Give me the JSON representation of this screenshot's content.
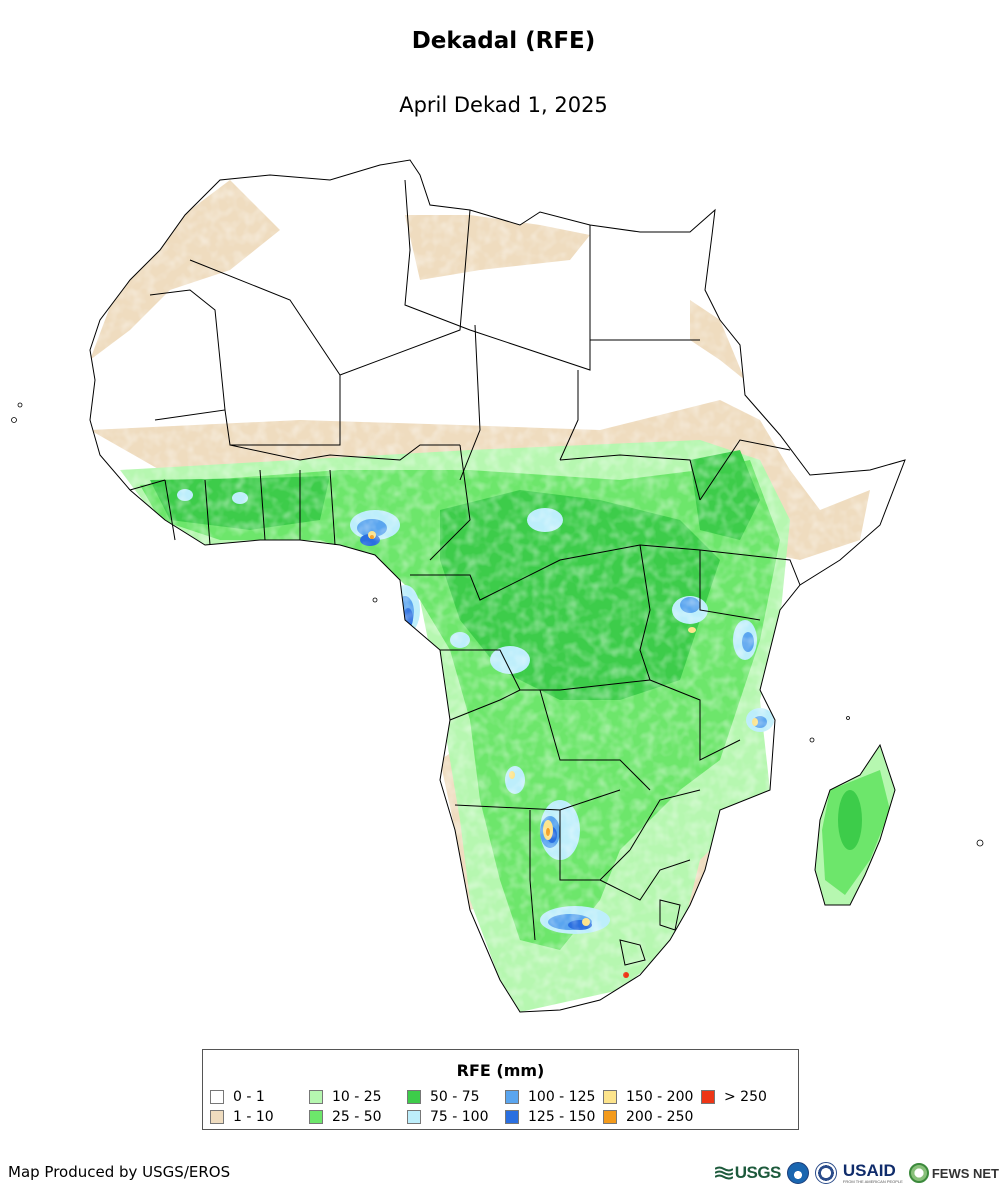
{
  "header": {
    "title": "Dekadal (RFE)",
    "subtitle": "April Dekad 1, 2025"
  },
  "map": {
    "region": "Africa",
    "basemap": "country boundaries",
    "background_color": "#ffffff",
    "border_color": "#000000"
  },
  "legend": {
    "title": "RFE (mm)",
    "classes": [
      {
        "label": "0 - 1",
        "color": "#ffffff"
      },
      {
        "label": "1 - 10",
        "color": "#efdcbf"
      },
      {
        "label": "10 - 25",
        "color": "#b6f7b0"
      },
      {
        "label": "25 - 50",
        "color": "#6de66b"
      },
      {
        "label": "50 - 75",
        "color": "#3dcc4a"
      },
      {
        "label": "75 - 100",
        "color": "#bdeefb"
      },
      {
        "label": "100 - 125",
        "color": "#5aa5ef"
      },
      {
        "label": "125 - 150",
        "color": "#2a6fe0"
      },
      {
        "label": "150 - 200",
        "color": "#fde48c"
      },
      {
        "label": "200 - 250",
        "color": "#f39a1b"
      },
      {
        "label": "> 250",
        "color": "#ee3515"
      }
    ]
  },
  "footer": {
    "credit": "Map Produced by USGS/EROS",
    "logos": [
      {
        "name": "USGS",
        "text": "USGS"
      },
      {
        "name": "NOAA",
        "text": ""
      },
      {
        "name": "USDA seal",
        "text": ""
      },
      {
        "name": "USAID",
        "text": "USAID",
        "tagline": "FROM THE AMERICAN PEOPLE"
      },
      {
        "name": "FEWS NET",
        "text": "FEWS NET"
      }
    ]
  }
}
